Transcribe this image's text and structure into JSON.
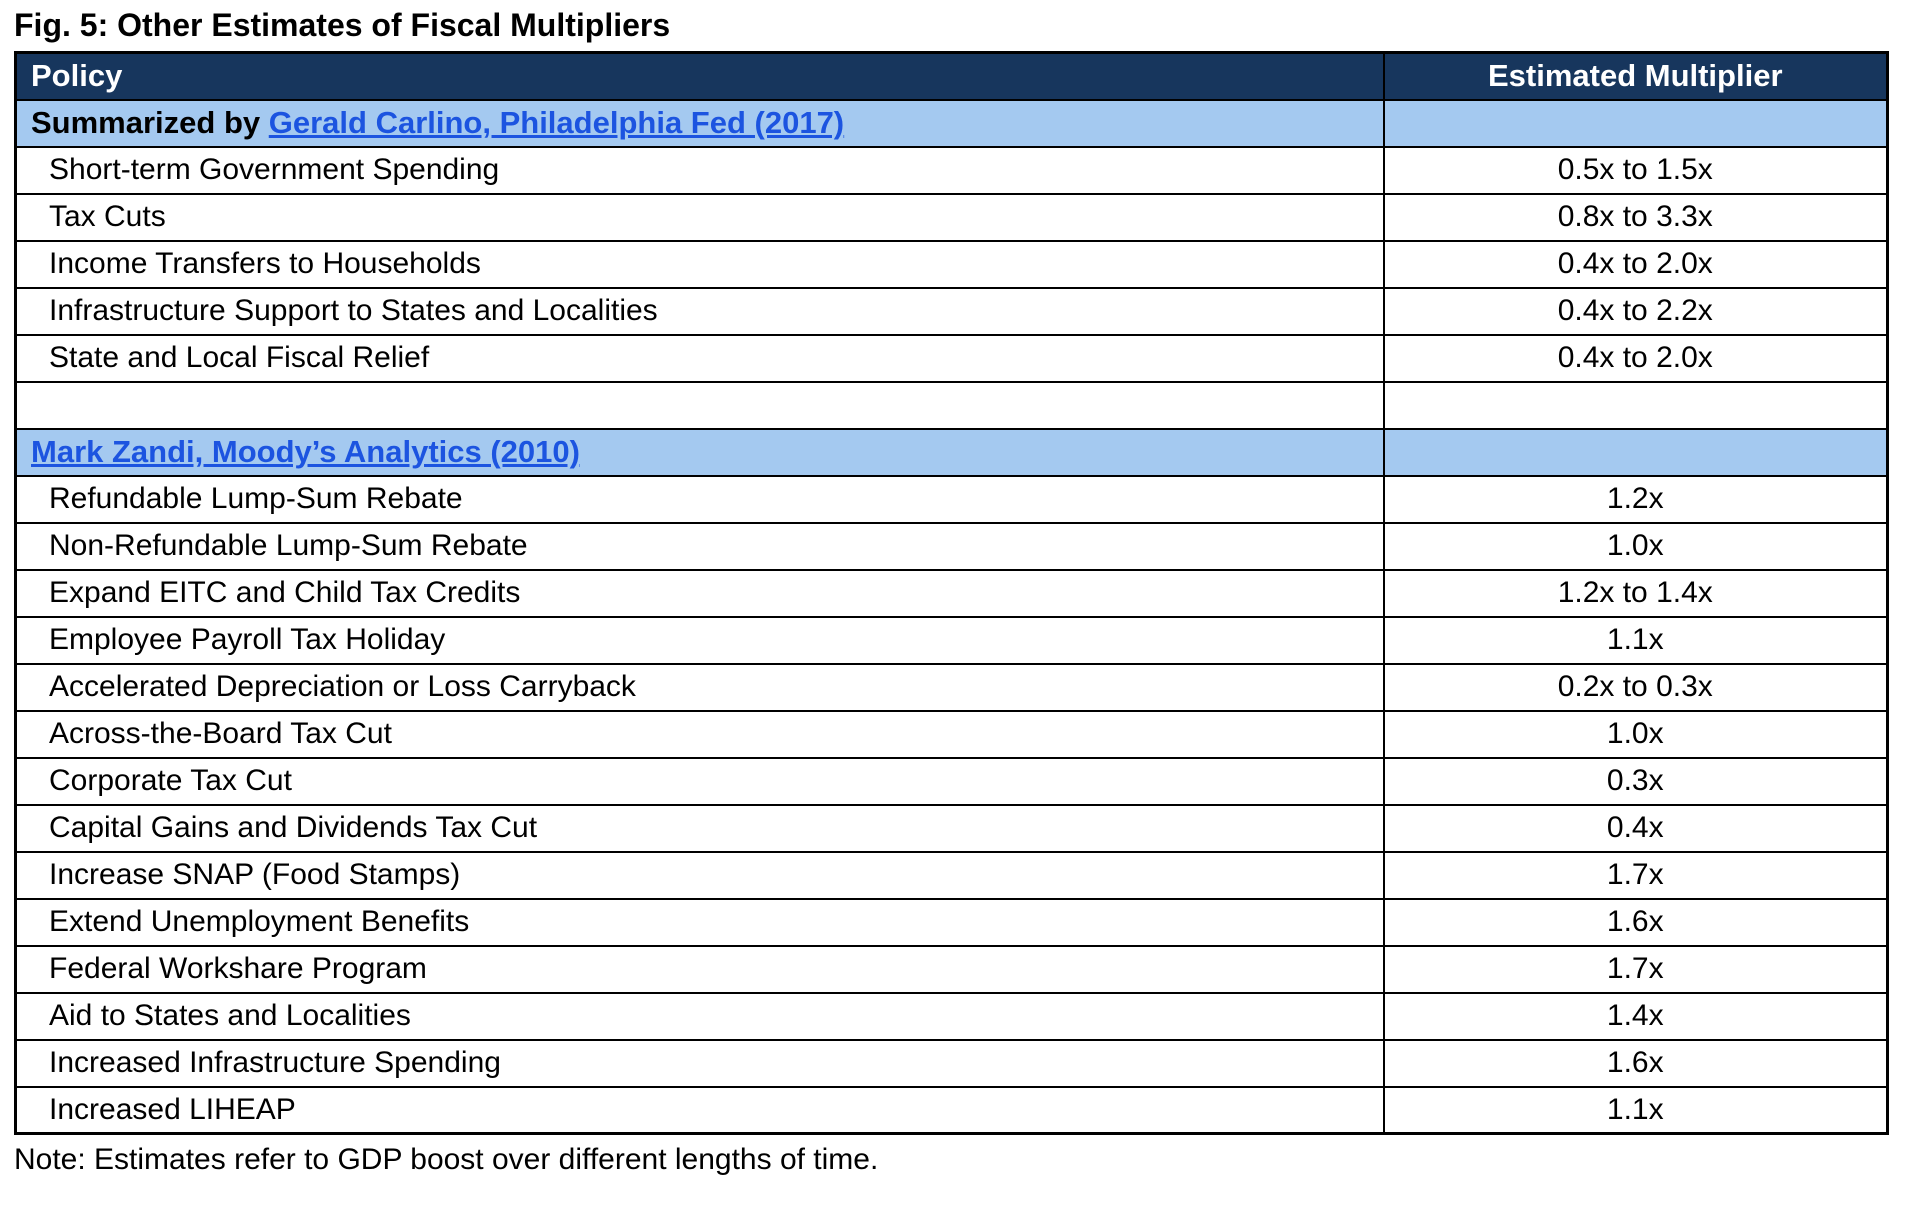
{
  "title": "Fig. 5: Other Estimates of Fiscal Multipliers",
  "note": "Note: Estimates refer to GDP boost over different lengths of time.",
  "colors": {
    "header_bg": "#17365D",
    "header_text": "#FFFFFF",
    "section_bg": "#A4C9F0",
    "link_blue": "#1C54E0",
    "border": "#000000"
  },
  "table": {
    "columns": [
      "Policy",
      "Estimated Multiplier"
    ],
    "spacer_between_sections": true,
    "sections": [
      {
        "header_prefix": "Summarized by ",
        "header_link": "Gerald Carlino, Philadelphia Fed (2017)",
        "rows": [
          {
            "policy": "Short-term Government Spending",
            "multiplier": "0.5x to 1.5x"
          },
          {
            "policy": "Tax Cuts",
            "multiplier": "0.8x to 3.3x"
          },
          {
            "policy": "Income Transfers to Households",
            "multiplier": "0.4x to 2.0x"
          },
          {
            "policy": "Infrastructure Support to States and Localities",
            "multiplier": "0.4x to 2.2x"
          },
          {
            "policy": "State and Local Fiscal Relief",
            "multiplier": "0.4x to 2.0x"
          }
        ]
      },
      {
        "header_prefix": "",
        "header_link": "Mark Zandi, Moody’s Analytics (2010)",
        "rows": [
          {
            "policy": "Refundable Lump-Sum Rebate",
            "multiplier": "1.2x"
          },
          {
            "policy": "Non-Refundable Lump-Sum Rebate",
            "multiplier": "1.0x"
          },
          {
            "policy": "Expand EITC and Child Tax Credits",
            "multiplier": "1.2x to 1.4x"
          },
          {
            "policy": "Employee Payroll Tax Holiday",
            "multiplier": "1.1x"
          },
          {
            "policy": "Accelerated Depreciation or Loss Carryback",
            "multiplier": "0.2x to 0.3x"
          },
          {
            "policy": "Across-the-Board Tax Cut",
            "multiplier": "1.0x"
          },
          {
            "policy": "Corporate Tax Cut",
            "multiplier": "0.3x"
          },
          {
            "policy": "Capital Gains and Dividends Tax Cut",
            "multiplier": "0.4x"
          },
          {
            "policy": "Increase SNAP (Food Stamps)",
            "multiplier": "1.7x"
          },
          {
            "policy": "Extend Unemployment Benefits",
            "multiplier": "1.6x"
          },
          {
            "policy": "Federal Workshare Program",
            "multiplier": "1.7x"
          },
          {
            "policy": "Aid to States and Localities",
            "multiplier": "1.4x"
          },
          {
            "policy": "Increased Infrastructure Spending",
            "multiplier": "1.6x"
          },
          {
            "policy": "Increased LIHEAP",
            "multiplier": "1.1x"
          }
        ]
      }
    ]
  }
}
